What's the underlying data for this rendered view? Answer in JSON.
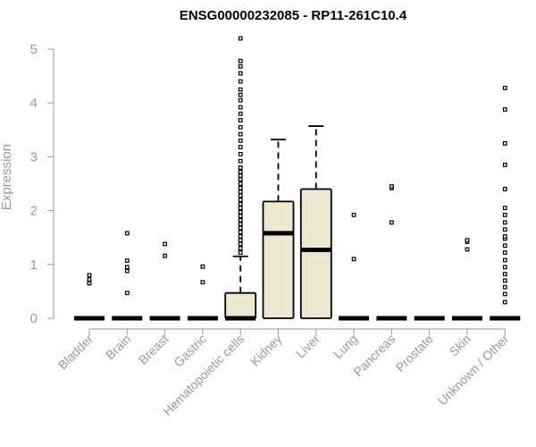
{
  "chart_data": {
    "type": "boxplot",
    "title": "ENSG00000232085 - RP11-261C10.4",
    "xlabel": "",
    "ylabel": "Expression",
    "ylim": [
      0,
      5.2
    ],
    "yticks": [
      0,
      1,
      2,
      3,
      4,
      5
    ],
    "grid": false,
    "categories": [
      "Bladder",
      "Brain",
      "Breast",
      "Gastric",
      "Hematopoietic cells",
      "Kidney",
      "Liver",
      "Lung",
      "Pancreas",
      "Prostate",
      "Skin",
      "Unknown / Other"
    ],
    "boxes": [
      {
        "min": 0,
        "q1": 0,
        "median": 0,
        "q3": 0,
        "max": 0,
        "outliers": [
          0.65,
          0.72,
          0.8
        ]
      },
      {
        "min": 0,
        "q1": 0,
        "median": 0,
        "q3": 0,
        "max": 0,
        "outliers": [
          0.47,
          0.88,
          0.95,
          1.07,
          1.58
        ]
      },
      {
        "min": 0,
        "q1": 0,
        "median": 0,
        "q3": 0,
        "max": 0,
        "outliers": [
          1.16,
          1.38
        ]
      },
      {
        "min": 0,
        "q1": 0,
        "median": 0,
        "q3": 0,
        "max": 0,
        "outliers": [
          0.67,
          0.96
        ]
      },
      {
        "min": 0,
        "q1": 0,
        "median": 0,
        "q3": 0.47,
        "max": 1.15,
        "outliers": [
          1.22,
          1.3,
          1.38,
          1.45,
          1.52,
          1.6,
          1.68,
          1.75,
          1.82,
          1.9,
          1.97,
          2.05,
          2.12,
          2.2,
          2.28,
          2.35,
          2.42,
          2.5,
          2.58,
          2.65,
          2.72,
          2.8,
          2.92,
          3.05,
          3.18,
          3.3,
          3.42,
          3.55,
          3.68,
          3.8,
          3.92,
          4.05,
          4.15,
          4.25,
          4.4,
          4.55,
          4.68,
          4.78,
          5.2
        ]
      },
      {
        "min": 0,
        "q1": 0,
        "median": 1.58,
        "q3": 2.17,
        "max": 3.32,
        "outliers": []
      },
      {
        "min": 0,
        "q1": 0,
        "median": 1.27,
        "q3": 2.4,
        "max": 3.57,
        "outliers": []
      },
      {
        "min": 0,
        "q1": 0,
        "median": 0,
        "q3": 0,
        "max": 0,
        "outliers": [
          1.1,
          1.92
        ]
      },
      {
        "min": 0,
        "q1": 0,
        "median": 0,
        "q3": 0,
        "max": 0,
        "outliers": [
          1.78,
          2.42,
          2.45
        ]
      },
      {
        "min": 0,
        "q1": 0,
        "median": 0,
        "q3": 0,
        "max": 0,
        "outliers": []
      },
      {
        "min": 0,
        "q1": 0,
        "median": 0,
        "q3": 0,
        "max": 0,
        "outliers": [
          1.28,
          1.42,
          1.45
        ]
      },
      {
        "min": 0,
        "q1": 0,
        "median": 0,
        "q3": 0,
        "max": 0,
        "outliers": [
          0.3,
          0.45,
          0.58,
          0.7,
          0.82,
          0.95,
          1.08,
          1.22,
          1.35,
          1.48,
          1.52,
          1.65,
          1.78,
          1.92,
          2.05,
          2.4,
          2.85,
          3.25,
          3.88,
          4.28
        ]
      }
    ],
    "colors": {
      "box_fill": "#efe8d1",
      "box_stroke": "#000000",
      "axis": "#999999",
      "title": "#000000"
    }
  }
}
